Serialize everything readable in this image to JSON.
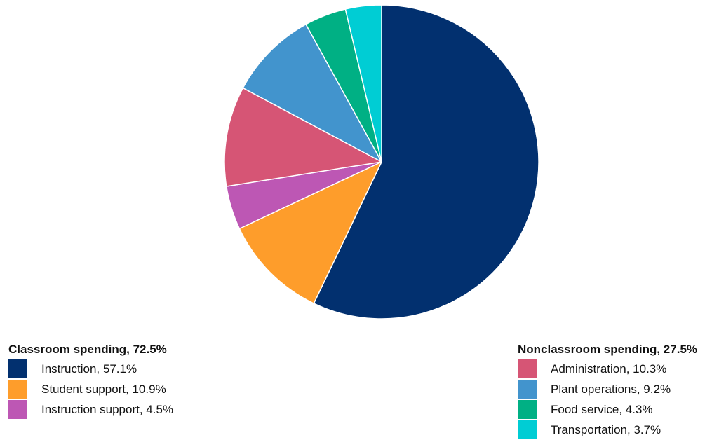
{
  "chart_data": {
    "type": "pie",
    "slices": [
      {
        "name": "Instruction",
        "value": 57.1,
        "label": "Instruction, 57.1%",
        "color": "#02306f",
        "group": "classroom"
      },
      {
        "name": "Student support",
        "value": 10.9,
        "label": "Student support, 10.9%",
        "color": "#fe9d2b",
        "group": "classroom"
      },
      {
        "name": "Instruction support",
        "value": 4.5,
        "label": "Instruction support, 4.5%",
        "color": "#bd57b4",
        "group": "classroom"
      },
      {
        "name": "Administration",
        "value": 10.3,
        "label": "Administration, 10.3%",
        "color": "#d65575",
        "group": "nonclassroom"
      },
      {
        "name": "Plant operations",
        "value": 9.2,
        "label": "Plant operations, 9.2%",
        "color": "#4294cd",
        "group": "nonclassroom"
      },
      {
        "name": "Food service",
        "value": 4.3,
        "label": "Food service, 4.3%",
        "color": "#00b084",
        "group": "nonclassroom"
      },
      {
        "name": "Transportation",
        "value": 3.7,
        "label": "Transportation, 3.7%",
        "color": "#00cdd4",
        "group": "nonclassroom"
      }
    ],
    "start_angle_deg": 0,
    "direction": "clockwise",
    "legend_groups": [
      {
        "title": "Classroom spending, 72.5%",
        "placement": "bottom-left"
      },
      {
        "title": "Nonclassroom spending, 27.5%",
        "placement": "bottom-right"
      }
    ]
  }
}
